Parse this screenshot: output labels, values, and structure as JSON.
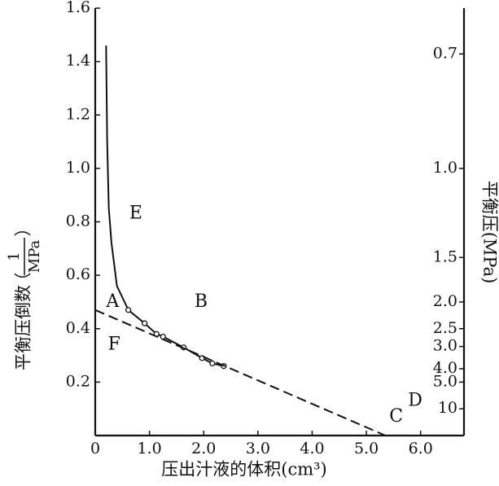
{
  "chart_data": {
    "type": "line",
    "xlabel": "压出汁液的体积(cm³)",
    "ylabel": {
      "text": "平衡压倒数",
      "open": "（",
      "num": "1",
      "den": "MPa",
      "close": "）"
    },
    "y2label": "平衡压(MPa)",
    "xlim": [
      0,
      6.8
    ],
    "ylim": [
      0,
      1.6
    ],
    "xticks": [
      0,
      {
        "value": 1,
        "label": "1.0"
      },
      {
        "value": 2,
        "label": "2.0"
      },
      {
        "value": 3,
        "label": "3.0"
      },
      {
        "value": 4,
        "label": "4.0"
      },
      {
        "value": 5,
        "label": "5.0"
      },
      {
        "value": 6,
        "label": "6.0"
      }
    ],
    "yticks": [
      0.2,
      0.4,
      0.6,
      0.8,
      {
        "value": 1,
        "label": "1.0"
      },
      1.2,
      1.4,
      1.6
    ],
    "y2scale": "reciprocal",
    "y2ticks": [
      0.7,
      {
        "value": 1,
        "label": "1.0"
      },
      1.5,
      {
        "value": 2,
        "label": "2.0"
      },
      2.5,
      {
        "value": 3,
        "label": "3.0"
      },
      {
        "value": 4,
        "label": "4.0"
      },
      {
        "value": 5,
        "label": "5.0"
      },
      10
    ],
    "color": "#111111",
    "series": [
      {
        "style": "solid",
        "marker": false,
        "x": [
          0.2,
          0.22,
          0.25,
          0.3,
          0.4,
          0.61,
          0.91,
          1.13,
          1.25,
          1.63,
          1.97,
          2.16,
          2.37
        ],
        "values": [
          1.46,
          1.1,
          0.85,
          0.72,
          0.56,
          0.47,
          0.42,
          0.38,
          0.37,
          0.33,
          0.29,
          0.27,
          0.26
        ]
      },
      {
        "style": "none",
        "marker": true,
        "x": [
          0.61,
          0.91,
          1.13,
          1.25,
          1.63,
          1.97,
          2.16,
          2.37
        ],
        "values": [
          0.47,
          0.42,
          0.38,
          0.37,
          0.33,
          0.29,
          0.27,
          0.26
        ]
      },
      {
        "style": "dashed",
        "marker": false,
        "x": [
          0,
          5.35
        ],
        "values": [
          0.47,
          0
        ]
      },
      {
        "style": "solid",
        "marker": false,
        "x": [
          5.35,
          6.3
        ],
        "values": [
          0,
          0
        ]
      }
    ],
    "annotations": [
      {
        "text": "A",
        "x": 0.32,
        "y": 0.5
      },
      {
        "text": "F",
        "x": 0.35,
        "y": 0.34
      },
      {
        "text": "E",
        "x": 0.75,
        "y": 0.83
      },
      {
        "text": "B",
        "x": 1.95,
        "y": 0.5
      },
      {
        "text": "C",
        "x": 5.55,
        "y": 0.07
      },
      {
        "text": "D",
        "x": 5.9,
        "y": 0.13
      }
    ]
  }
}
